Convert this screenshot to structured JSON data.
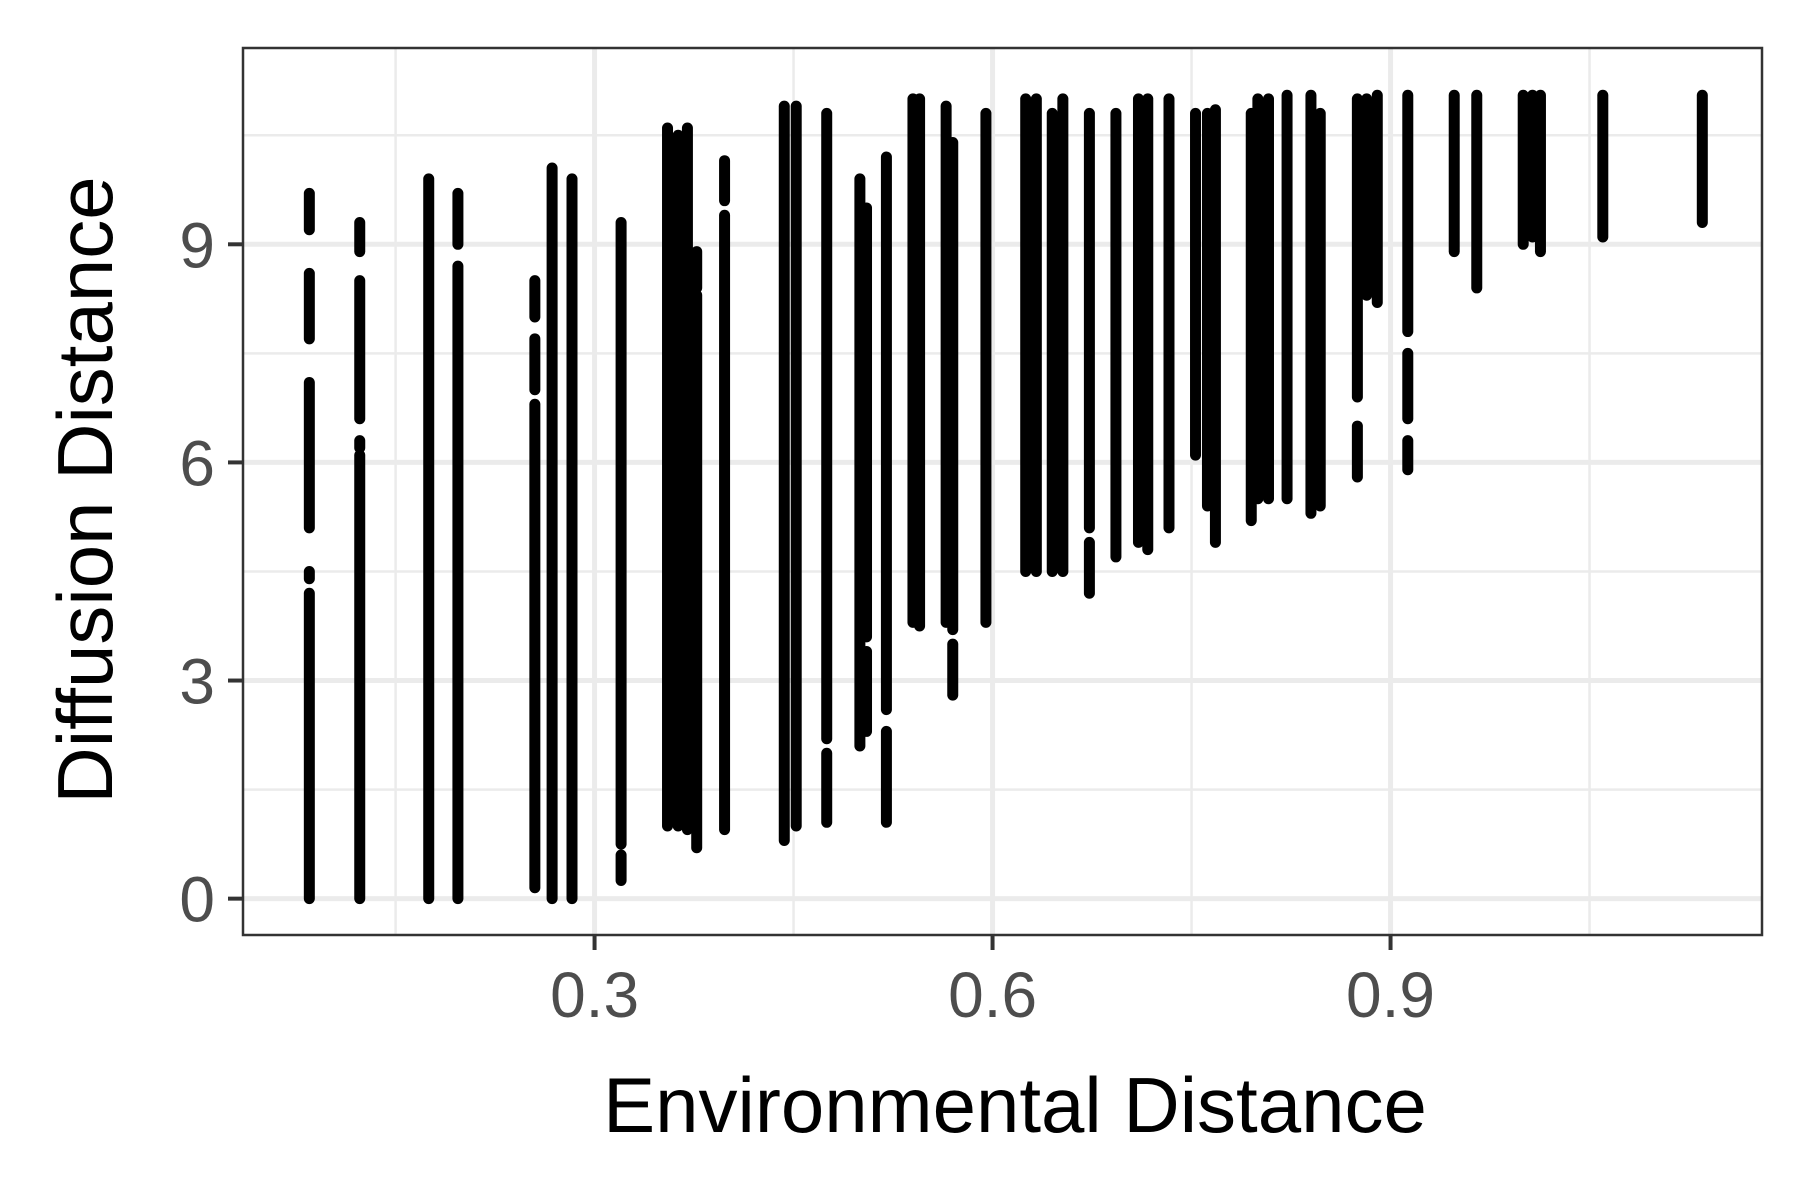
{
  "chart_data": {
    "type": "scatter",
    "title": "",
    "xlabel": "Environmental Distance",
    "ylabel": "Diffusion Distance",
    "xlim": [
      0.035,
      1.18
    ],
    "ylim": [
      -0.5,
      11.7
    ],
    "x_ticks": [
      0.3,
      0.6,
      0.9
    ],
    "x_tick_labels": [
      "0.3",
      "0.6",
      "0.9"
    ],
    "y_ticks": [
      0,
      3,
      6,
      9
    ],
    "y_tick_labels": [
      "0",
      "3",
      "6",
      "9"
    ],
    "grid": true,
    "legend": "none",
    "point_color": "#000000",
    "grid_color": "#ebebeb",
    "panel_border_color": "#333333",
    "columns": [
      {
        "x": 0.085,
        "segments": [
          [
            0,
            4.2
          ],
          [
            4.4,
            4.5
          ],
          [
            5.1,
            7.1
          ],
          [
            7.7,
            8.6
          ],
          [
            9.2,
            9.7
          ]
        ]
      },
      {
        "x": 0.123,
        "segments": [
          [
            0,
            6.1
          ],
          [
            6.2,
            6.3
          ],
          [
            6.6,
            8.5
          ],
          [
            8.9,
            9.3
          ]
        ]
      },
      {
        "x": 0.175,
        "segments": [
          [
            0,
            9.9
          ]
        ]
      },
      {
        "x": 0.197,
        "segments": [
          [
            0,
            8.7
          ],
          [
            9.0,
            9.7
          ]
        ]
      },
      {
        "x": 0.255,
        "segments": [
          [
            0.15,
            6.8
          ],
          [
            7.0,
            7.7
          ],
          [
            8.0,
            8.5
          ]
        ]
      },
      {
        "x": 0.268,
        "segments": [
          [
            0,
            10.05
          ]
        ]
      },
      {
        "x": 0.283,
        "segments": [
          [
            0,
            9.9
          ]
        ]
      },
      {
        "x": 0.32,
        "segments": [
          [
            0.25,
            0.6
          ],
          [
            0.75,
            9.3
          ]
        ]
      },
      {
        "x": 0.355,
        "segments": [
          [
            1.0,
            10.6
          ]
        ]
      },
      {
        "x": 0.363,
        "segments": [
          [
            1.0,
            10.5
          ]
        ]
      },
      {
        "x": 0.37,
        "segments": [
          [
            0.95,
            10.6
          ]
        ]
      },
      {
        "x": 0.377,
        "segments": [
          [
            0.7,
            8.3
          ],
          [
            8.4,
            8.9
          ]
        ]
      },
      {
        "x": 0.398,
        "segments": [
          [
            0.95,
            9.4
          ],
          [
            9.6,
            10.15
          ]
        ]
      },
      {
        "x": 0.443,
        "segments": [
          [
            0.8,
            10.9
          ]
        ]
      },
      {
        "x": 0.452,
        "segments": [
          [
            1.0,
            10.9
          ]
        ]
      },
      {
        "x": 0.475,
        "segments": [
          [
            1.05,
            2.0
          ],
          [
            2.2,
            10.8
          ]
        ]
      },
      {
        "x": 0.5,
        "segments": [
          [
            2.1,
            9.9
          ]
        ]
      },
      {
        "x": 0.505,
        "segments": [
          [
            2.3,
            3.4
          ],
          [
            3.6,
            9.5
          ]
        ]
      },
      {
        "x": 0.52,
        "segments": [
          [
            1.05,
            2.3
          ],
          [
            2.6,
            10.2
          ]
        ]
      },
      {
        "x": 0.54,
        "segments": [
          [
            3.8,
            11.0
          ]
        ]
      },
      {
        "x": 0.545,
        "segments": [
          [
            3.75,
            11.0
          ]
        ]
      },
      {
        "x": 0.565,
        "segments": [
          [
            3.8,
            10.9
          ]
        ]
      },
      {
        "x": 0.57,
        "segments": [
          [
            2.8,
            3.5
          ],
          [
            3.7,
            10.4
          ]
        ]
      },
      {
        "x": 0.595,
        "segments": [
          [
            3.8,
            10.8
          ]
        ]
      },
      {
        "x": 0.625,
        "segments": [
          [
            4.5,
            11.0
          ]
        ]
      },
      {
        "x": 0.633,
        "segments": [
          [
            4.5,
            11.0
          ]
        ]
      },
      {
        "x": 0.645,
        "segments": [
          [
            4.5,
            10.8
          ]
        ]
      },
      {
        "x": 0.653,
        "segments": [
          [
            4.5,
            11.0
          ]
        ]
      },
      {
        "x": 0.673,
        "segments": [
          [
            4.2,
            4.9
          ],
          [
            5.1,
            10.8
          ]
        ]
      },
      {
        "x": 0.693,
        "segments": [
          [
            4.7,
            10.8
          ]
        ]
      },
      {
        "x": 0.71,
        "segments": [
          [
            4.9,
            11.0
          ]
        ]
      },
      {
        "x": 0.717,
        "segments": [
          [
            4.8,
            11.0
          ]
        ]
      },
      {
        "x": 0.733,
        "segments": [
          [
            5.1,
            11.0
          ]
        ]
      },
      {
        "x": 0.753,
        "segments": [
          [
            6.1,
            10.8
          ]
        ]
      },
      {
        "x": 0.762,
        "segments": [
          [
            5.4,
            10.8
          ]
        ]
      },
      {
        "x": 0.768,
        "segments": [
          [
            4.9,
            10.85
          ]
        ]
      },
      {
        "x": 0.795,
        "segments": [
          [
            5.2,
            10.8
          ]
        ]
      },
      {
        "x": 0.8,
        "segments": [
          [
            5.5,
            11.0
          ]
        ]
      },
      {
        "x": 0.808,
        "segments": [
          [
            5.5,
            11.0
          ]
        ]
      },
      {
        "x": 0.822,
        "segments": [
          [
            5.5,
            11.05
          ]
        ]
      },
      {
        "x": 0.84,
        "segments": [
          [
            5.3,
            11.05
          ]
        ]
      },
      {
        "x": 0.847,
        "segments": [
          [
            5.4,
            10.8
          ]
        ]
      },
      {
        "x": 0.875,
        "segments": [
          [
            5.8,
            6.5
          ],
          [
            6.9,
            11.0
          ]
        ]
      },
      {
        "x": 0.882,
        "segments": [
          [
            8.3,
            11.0
          ]
        ]
      },
      {
        "x": 0.89,
        "segments": [
          [
            8.2,
            11.05
          ]
        ]
      },
      {
        "x": 0.913,
        "segments": [
          [
            5.9,
            6.3
          ],
          [
            6.6,
            7.5
          ],
          [
            7.8,
            11.05
          ]
        ]
      },
      {
        "x": 0.948,
        "segments": [
          [
            8.9,
            11.05
          ]
        ]
      },
      {
        "x": 0.965,
        "segments": [
          [
            8.4,
            11.05
          ]
        ]
      },
      {
        "x": 1.0,
        "segments": [
          [
            9.0,
            11.05
          ]
        ]
      },
      {
        "x": 1.007,
        "segments": [
          [
            9.1,
            11.05
          ]
        ]
      },
      {
        "x": 1.013,
        "segments": [
          [
            8.9,
            11.05
          ]
        ]
      },
      {
        "x": 1.06,
        "segments": [
          [
            9.1,
            11.05
          ]
        ]
      },
      {
        "x": 1.135,
        "segments": [
          [
            9.3,
            11.05
          ]
        ]
      }
    ]
  }
}
